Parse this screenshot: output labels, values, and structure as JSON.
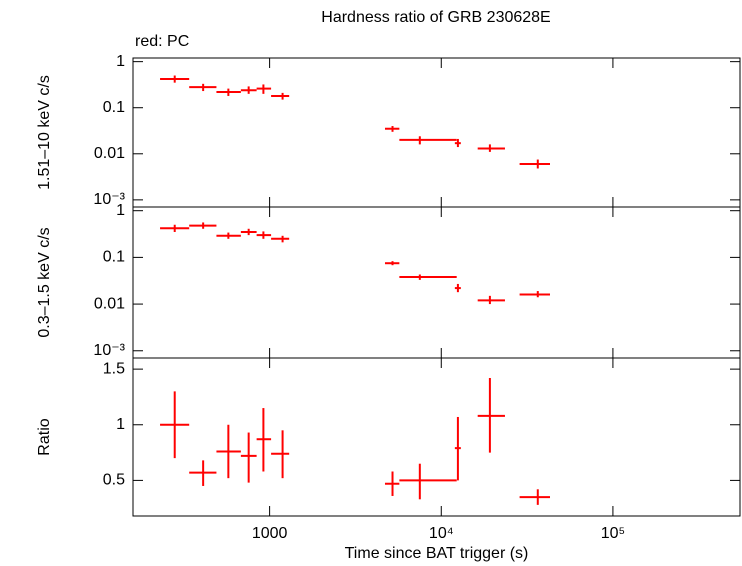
{
  "chart_data": [
    {
      "type": "scatter",
      "title": "Hardness ratio of GRB 230628E",
      "annotation": "red: PC",
      "ylabel": "1.51–10 keV c/s",
      "log_x": true,
      "log_y": true,
      "xtick_labels": false,
      "xlim": [
        160,
        550000
      ],
      "ylim": [
        0.0007,
        1.2
      ],
      "xticks": [
        {
          "value": 1000,
          "label": "1000"
        },
        {
          "value": 10000,
          "label": "10⁴"
        },
        {
          "value": 100000,
          "label": "10⁵"
        }
      ],
      "yticks": [
        1,
        0.1,
        0.01,
        {
          "value": 0.001,
          "label": "10⁻³"
        }
      ],
      "series": [
        {
          "color": "#ff0000",
          "x": [
            280,
            410,
            575,
            755,
            920,
            1190,
            5200,
            7500,
            12500,
            19200,
            36500
          ],
          "x_low": [
            230,
            340,
            490,
            680,
            840,
            1020,
            4700,
            5700,
            12000,
            16300,
            28600
          ],
          "x_high": [
            340,
            490,
            680,
            840,
            1020,
            1300,
            5700,
            12300,
            13000,
            23500,
            43000
          ],
          "values": [
            0.42,
            0.28,
            0.22,
            0.24,
            0.26,
            0.18,
            0.035,
            0.02,
            0.017,
            0.013,
            0.006
          ],
          "y_low": [
            0.35,
            0.23,
            0.18,
            0.2,
            0.2,
            0.15,
            0.03,
            0.016,
            0.014,
            0.011,
            0.0048
          ],
          "y_high": [
            0.5,
            0.33,
            0.26,
            0.29,
            0.32,
            0.21,
            0.04,
            0.024,
            0.021,
            0.016,
            0.0075
          ]
        }
      ]
    },
    {
      "type": "scatter",
      "ylabel": "0.3–1.5 keV c/s",
      "log_x": true,
      "log_y": true,
      "xtick_labels": false,
      "xlim": [
        160,
        550000
      ],
      "ylim": [
        0.0007,
        1.2
      ],
      "xticks": [
        {
          "value": 1000,
          "label": "1000"
        },
        {
          "value": 10000,
          "label": "10⁴"
        },
        {
          "value": 100000,
          "label": "10⁵"
        }
      ],
      "yticks": [
        1,
        0.1,
        0.01,
        {
          "value": 0.001,
          "label": "10⁻³"
        }
      ],
      "series": [
        {
          "color": "#ff0000",
          "x": [
            280,
            410,
            575,
            755,
            920,
            1190,
            5200,
            7500,
            12500,
            19200,
            36500
          ],
          "x_low": [
            230,
            340,
            490,
            680,
            840,
            1020,
            4700,
            5700,
            12000,
            16300,
            28600
          ],
          "x_high": [
            340,
            490,
            680,
            840,
            1020,
            1300,
            5700,
            12300,
            13000,
            23500,
            43000
          ],
          "values": [
            0.42,
            0.48,
            0.29,
            0.35,
            0.3,
            0.25,
            0.075,
            0.038,
            0.022,
            0.012,
            0.016
          ],
          "y_low": [
            0.35,
            0.41,
            0.25,
            0.3,
            0.25,
            0.21,
            0.068,
            0.033,
            0.018,
            0.01,
            0.014
          ],
          "y_high": [
            0.5,
            0.56,
            0.34,
            0.41,
            0.36,
            0.29,
            0.083,
            0.043,
            0.027,
            0.015,
            0.019
          ]
        }
      ]
    },
    {
      "type": "scatter",
      "ylabel": "Ratio",
      "xlabel": "Time since BAT trigger (s)",
      "log_x": true,
      "log_y": false,
      "xtick_labels": true,
      "xlim": [
        160,
        550000
      ],
      "ylim": [
        0.18,
        1.6
      ],
      "xticks": [
        {
          "value": 1000,
          "label": "1000"
        },
        {
          "value": 10000,
          "label": "10⁴"
        },
        {
          "value": 100000,
          "label": "10⁵"
        }
      ],
      "yticks": [
        0.5,
        1,
        1.5
      ],
      "series": [
        {
          "color": "#ff0000",
          "x": [
            280,
            410,
            575,
            755,
            920,
            1190,
            5200,
            7500,
            12500,
            19200,
            36500
          ],
          "x_low": [
            230,
            340,
            490,
            680,
            840,
            1020,
            4700,
            5700,
            12000,
            16300,
            28600
          ],
          "x_high": [
            340,
            490,
            680,
            840,
            1020,
            1300,
            5700,
            12300,
            13000,
            23500,
            43000
          ],
          "values": [
            1.0,
            0.57,
            0.76,
            0.72,
            0.87,
            0.74,
            0.47,
            0.5,
            0.79,
            1.08,
            0.35
          ],
          "y_low": [
            0.7,
            0.45,
            0.52,
            0.48,
            0.58,
            0.52,
            0.36,
            0.33,
            0.5,
            0.75,
            0.28
          ],
          "y_high": [
            1.3,
            0.68,
            1.0,
            0.93,
            1.15,
            0.95,
            0.58,
            0.65,
            1.07,
            1.42,
            0.42
          ]
        }
      ]
    }
  ]
}
